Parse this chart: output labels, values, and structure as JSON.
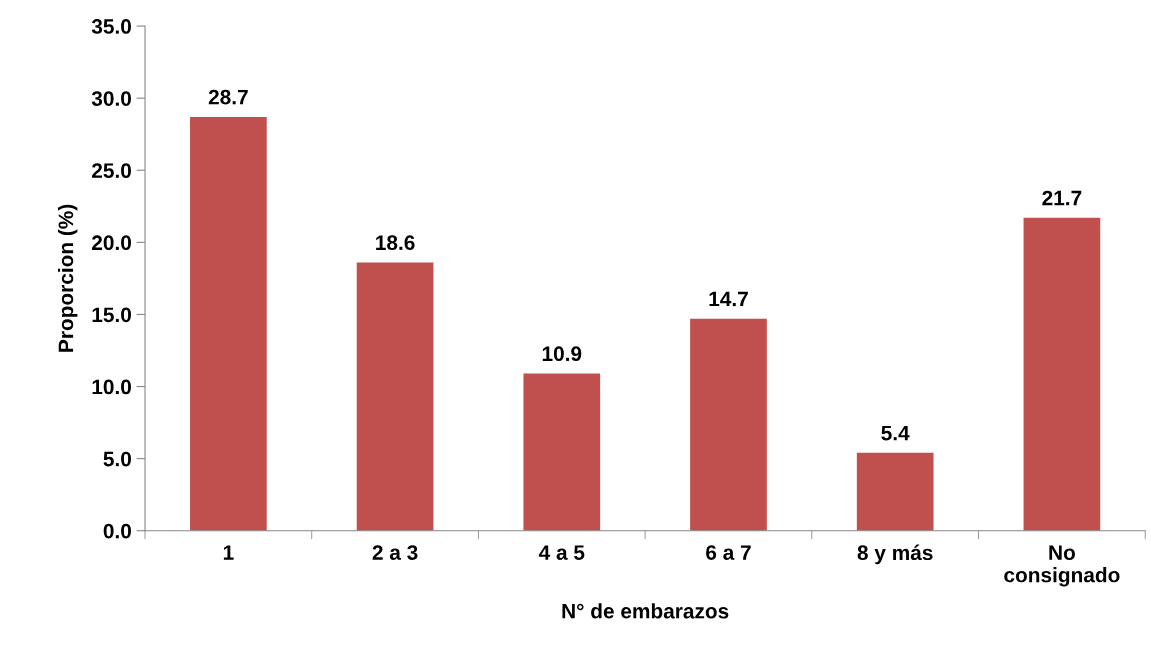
{
  "chart_data": {
    "type": "bar",
    "xlabel": "N° de embarazos",
    "ylabel": "Proporcion (%)",
    "categories": [
      "1",
      "2 a 3",
      "4 a 5",
      "6 a 7",
      "8 y más",
      "No\nconsignado"
    ],
    "values": [
      28.7,
      18.6,
      10.9,
      14.7,
      5.4,
      21.7
    ],
    "color": "#c0504d",
    "ylim": [
      0,
      35
    ],
    "yticks": [
      {
        "value": 0,
        "label": "0.0"
      },
      {
        "value": 5,
        "label": "5.0"
      },
      {
        "value": 10,
        "label": "10.0"
      },
      {
        "value": 15,
        "label": "15.0"
      },
      {
        "value": 20,
        "label": "20.0"
      },
      {
        "value": 25,
        "label": "25.0"
      },
      {
        "value": 30,
        "label": "30.0"
      },
      {
        "value": 35,
        "label": "35.0"
      }
    ],
    "data_labels": true,
    "grid": false,
    "legend": false
  }
}
